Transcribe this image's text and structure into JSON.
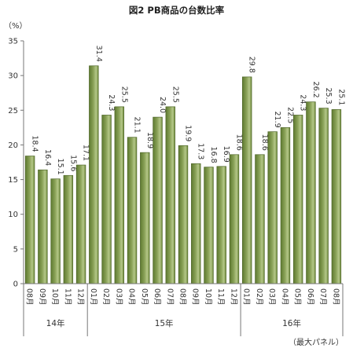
{
  "chart_data": {
    "type": "bar",
    "title": "図2 PB商品の台数比率",
    "unit": "（%）",
    "note": "（最大パネル）",
    "ylim": [
      0,
      35
    ],
    "yticks": [
      0,
      5,
      10,
      15,
      20,
      25,
      30,
      35
    ],
    "grid": false,
    "bar_color": "#8aa258",
    "categories": [
      "08月",
      "09月",
      "10月",
      "11月",
      "12月",
      "01月",
      "02月",
      "03月",
      "04月",
      "05月",
      "06月",
      "07月",
      "08月",
      "09月",
      "10月",
      "11月",
      "12月",
      "01月",
      "02月",
      "03月",
      "04月",
      "05月",
      "06月",
      "07月",
      "08月"
    ],
    "values": [
      18.4,
      16.4,
      15.1,
      15.6,
      17.1,
      31.4,
      24.3,
      25.5,
      21.1,
      18.9,
      24.0,
      25.5,
      19.9,
      17.3,
      16.8,
      16.9,
      18.6,
      29.8,
      18.6,
      21.9,
      22.5,
      24.3,
      26.2,
      25.3,
      25.1
    ],
    "value_labels": [
      "18.4",
      "16.4",
      "15.1",
      "15.6",
      "17.1",
      "31.4",
      "24.3",
      "25.5",
      "21.1",
      "18.9",
      "24.0",
      "25.5",
      "19.9",
      "17.3",
      "16.8",
      "16.9",
      "18.6",
      "29.8",
      "18.6",
      "21.9",
      "22.5",
      "24.3",
      "26.2",
      "25.3",
      "25.1"
    ],
    "year_groups": [
      {
        "label": "14年",
        "count": 5
      },
      {
        "label": "15年",
        "count": 12
      },
      {
        "label": "16年",
        "count": 8
      }
    ]
  }
}
